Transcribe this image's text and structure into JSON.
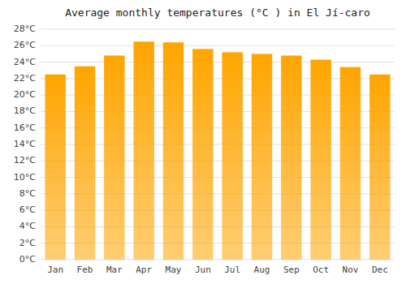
{
  "chart_data": {
    "type": "bar",
    "title": "Average monthly temperatures (°C ) in El Jí-caro",
    "categories": [
      "Jan",
      "Feb",
      "Mar",
      "Apr",
      "May",
      "Jun",
      "Jul",
      "Aug",
      "Sep",
      "Oct",
      "Nov",
      "Dec"
    ],
    "values": [
      22.5,
      23.5,
      24.8,
      26.5,
      26.4,
      25.6,
      25.2,
      25.0,
      24.8,
      24.3,
      23.4,
      22.5
    ],
    "color": "#FFA500",
    "ylim": [
      0,
      28
    ],
    "yticks": [
      {
        "value": 0,
        "label": "0°C"
      },
      {
        "value": 2,
        "label": "2°C"
      },
      {
        "value": 4,
        "label": "4°C"
      },
      {
        "value": 6,
        "label": "6°C"
      },
      {
        "value": 8,
        "label": "8°C"
      },
      {
        "value": 10,
        "label": "10°C"
      },
      {
        "value": 12,
        "label": "12°C"
      },
      {
        "value": 14,
        "label": "14°C"
      },
      {
        "value": 16,
        "label": "16°C"
      },
      {
        "value": 18,
        "label": "18°C"
      },
      {
        "value": 20,
        "label": "20°C"
      },
      {
        "value": 22,
        "label": "22°C"
      },
      {
        "value": 24,
        "label": "24°C"
      },
      {
        "value": 26,
        "label": "26°C"
      },
      {
        "value": 28,
        "label": "28°C"
      }
    ],
    "grid": true
  }
}
